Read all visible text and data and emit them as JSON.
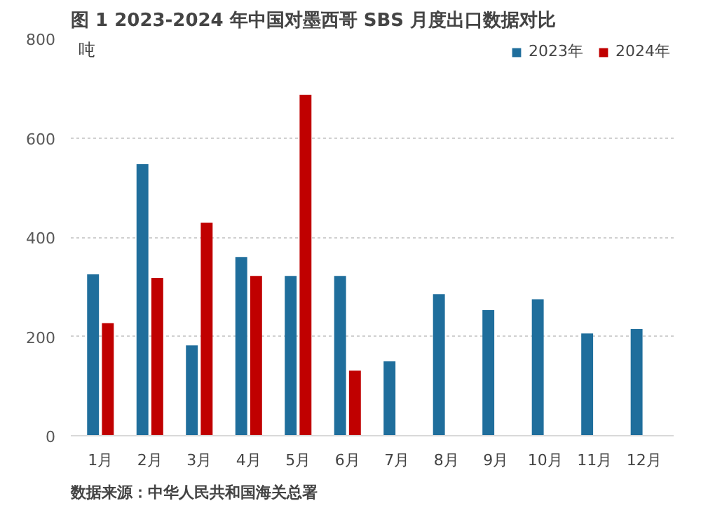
{
  "chart_data": {
    "type": "bar",
    "title": "图 1 2023-2024 年中国对墨西哥 SBS 月度出口数据对比",
    "ylabel": "吨",
    "categories": [
      "1月",
      "2月",
      "3月",
      "4月",
      "5月",
      "6月",
      "7月",
      "8月",
      "9月",
      "10月",
      "11月",
      "12月"
    ],
    "series": [
      {
        "name": "2023年",
        "color": "#1f6e9c",
        "values": [
          325,
          547,
          182,
          360,
          322,
          322,
          150,
          285,
          253,
          275,
          206,
          215
        ]
      },
      {
        "name": "2024年",
        "color": "#c00000",
        "values": [
          227,
          318,
          429,
          322,
          687,
          131,
          null,
          null,
          null,
          null,
          null,
          null
        ]
      }
    ],
    "ylim": [
      0,
      800
    ],
    "yticks": [
      0,
      200,
      400,
      600,
      800
    ],
    "grid": "y",
    "legend": "top right",
    "annotations": [
      "数据来源：中华人民共和国海关总署"
    ]
  }
}
